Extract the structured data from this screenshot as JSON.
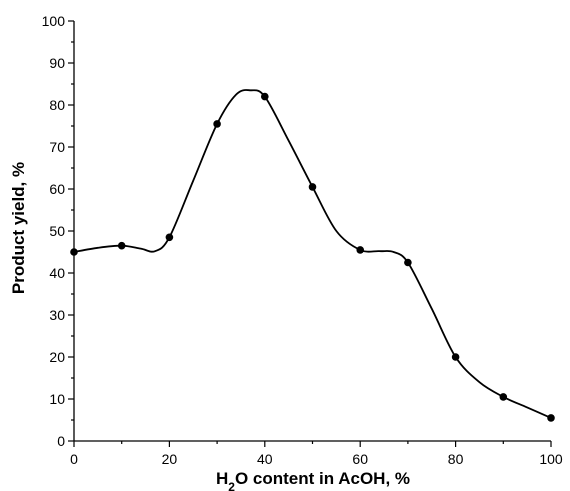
{
  "chart_data": {
    "type": "line",
    "title": "",
    "xlabel": {
      "main": "H",
      "sub": "2",
      "rest": "O content in AcOH, %"
    },
    "ylabel": "Product yield, %",
    "xlim": [
      0,
      100
    ],
    "ylim": [
      0,
      100
    ],
    "x_ticks": [
      0,
      20,
      40,
      60,
      80,
      100
    ],
    "y_ticks": [
      0,
      10,
      20,
      30,
      40,
      50,
      60,
      70,
      80,
      90,
      100
    ],
    "x_tick_labels": [
      "0",
      "20",
      "40",
      "60",
      "80",
      "100"
    ],
    "y_tick_labels": [
      "0",
      "10",
      "20",
      "30",
      "40",
      "50",
      "60",
      "70",
      "80",
      "90",
      "100"
    ],
    "grid": false,
    "series": [
      {
        "points": [
          {
            "x": 0,
            "y": 45
          },
          {
            "x": 10,
            "y": 46.5
          },
          {
            "x": 20,
            "y": 48.5
          },
          {
            "x": 30,
            "y": 75.5
          },
          {
            "x": 40,
            "y": 82
          },
          {
            "x": 50,
            "y": 60.5
          },
          {
            "x": 60,
            "y": 45.5
          },
          {
            "x": 70,
            "y": 42.5
          },
          {
            "x": 80,
            "y": 20
          },
          {
            "x": 90,
            "y": 10.5
          },
          {
            "x": 100,
            "y": 5.5
          }
        ],
        "curve": [
          [
            0,
            45
          ],
          [
            5,
            46
          ],
          [
            10,
            46.5
          ],
          [
            14,
            45.8
          ],
          [
            17,
            45.2
          ],
          [
            20,
            48.5
          ],
          [
            25,
            62
          ],
          [
            30,
            75.5
          ],
          [
            34,
            82.5
          ],
          [
            37,
            83.5
          ],
          [
            40,
            82
          ],
          [
            45,
            71.5
          ],
          [
            50,
            60.5
          ],
          [
            55,
            50
          ],
          [
            60,
            45.5
          ],
          [
            64,
            45.2
          ],
          [
            67,
            45
          ],
          [
            70,
            42.5
          ],
          [
            75,
            31.5
          ],
          [
            80,
            20
          ],
          [
            85,
            14
          ],
          [
            90,
            10.5
          ],
          [
            95,
            8
          ],
          [
            100,
            5.5
          ]
        ]
      }
    ]
  }
}
